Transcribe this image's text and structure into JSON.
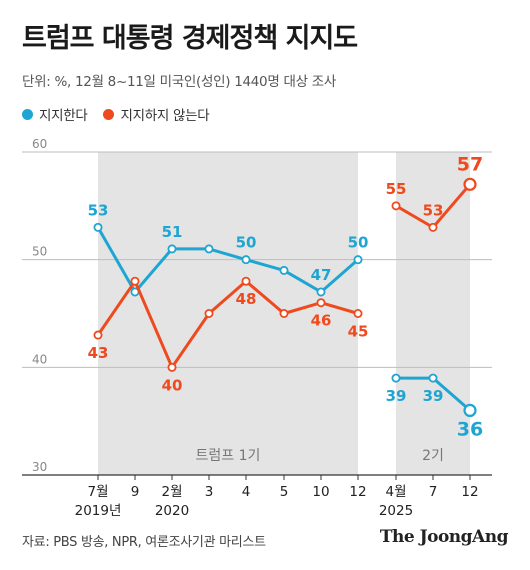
{
  "title": "트럼프 대통령 경제정책 지지도",
  "subtitle": "단위: %, 12월 8~11일 미국인(성인) 1440명 대상 조사",
  "source": "자료: PBS 방송, NPR, 여론조사기관 마리스트",
  "brand": "The JoongAng",
  "colors": {
    "support": "#1ea5d2",
    "oppose": "#ee4a1e",
    "panel": "#e4e4e4"
  },
  "chart_data": {
    "type": "line",
    "title": "트럼프 대통령 경제정책 지지도",
    "ylim": [
      30,
      60
    ],
    "yticks": [
      "60",
      "50",
      "40",
      "30"
    ],
    "x": [
      "7월",
      "9",
      "2월",
      "3",
      "4",
      "5",
      "10",
      "12",
      "4월",
      "7",
      "12"
    ],
    "year_labels": [
      {
        "index": 0,
        "label": "2019년"
      },
      {
        "index": 2,
        "label": "2020"
      },
      {
        "index": 8,
        "label": "2025"
      }
    ],
    "period_labels": [
      {
        "label": "트럼프 1기",
        "from": 0,
        "to": 7
      },
      {
        "label": "2기",
        "from": 8,
        "to": 10
      }
    ],
    "series": [
      {
        "name": "지지한다",
        "key": "support",
        "segments": [
          {
            "x": [
              0,
              1,
              2,
              3,
              4,
              5,
              6,
              7
            ],
            "values": [
              53,
              47,
              51,
              51,
              50,
              49,
              47,
              50
            ]
          },
          {
            "x": [
              8,
              9,
              10
            ],
            "values": [
              39,
              39,
              36
            ]
          }
        ],
        "labels": [
          {
            "i": 0,
            "text": "53"
          },
          {
            "i": 2,
            "text": "51"
          },
          {
            "i": 4,
            "text": "50"
          },
          {
            "i": 6,
            "text": "47"
          },
          {
            "i": 7,
            "text": "50"
          },
          {
            "i": 8,
            "text": "39"
          },
          {
            "i": 9,
            "text": "39"
          },
          {
            "i": 10,
            "text": "36"
          }
        ]
      },
      {
        "name": "지지하지 않는다",
        "key": "oppose",
        "segments": [
          {
            "x": [
              0,
              1,
              2,
              3,
              4,
              5,
              6,
              7
            ],
            "values": [
              43,
              48,
              40,
              45,
              48,
              45,
              46,
              45
            ]
          },
          {
            "x": [
              8,
              9,
              10
            ],
            "values": [
              55,
              53,
              57
            ]
          }
        ],
        "labels": [
          {
            "i": 0,
            "text": "43"
          },
          {
            "i": 2,
            "text": "40"
          },
          {
            "i": 4,
            "text": "48"
          },
          {
            "i": 6,
            "text": "46"
          },
          {
            "i": 7,
            "text": "45"
          },
          {
            "i": 8,
            "text": "55"
          },
          {
            "i": 9,
            "text": "53"
          },
          {
            "i": 10,
            "text": "57"
          }
        ]
      }
    ],
    "endpoint_emphasis": true
  }
}
